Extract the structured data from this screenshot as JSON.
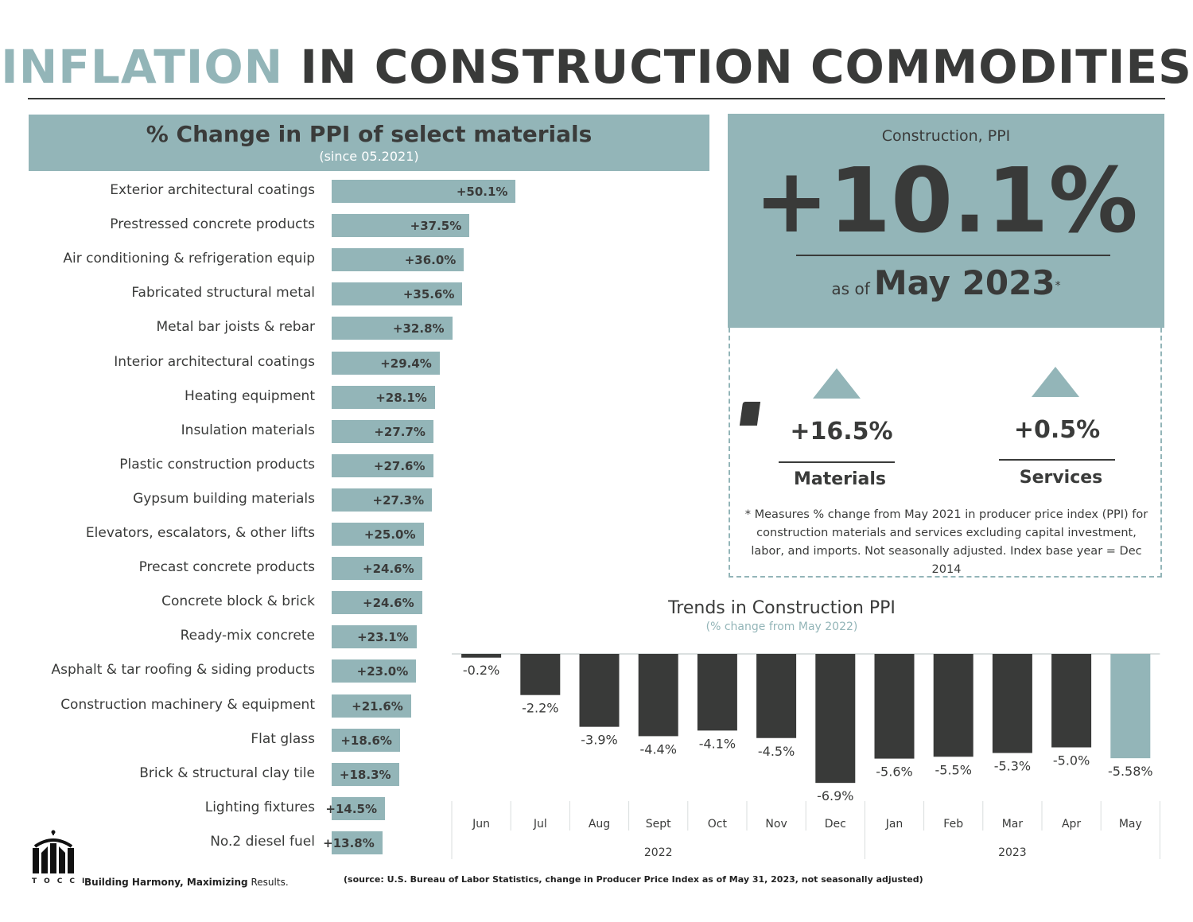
{
  "title": {
    "part1": "INFLATION",
    "part2": "IN CONSTRUCTION COMMODITIES"
  },
  "left_panel": {
    "heading": "% Change in PPI of select materials",
    "subheading": "(since 05.2021)"
  },
  "ppi_box": {
    "caption": "Construction, PPI",
    "value": "+10.1%",
    "as_of_prefix": "as of",
    "as_of_date": "May 2023",
    "asterisk": "*"
  },
  "stats": {
    "materials": {
      "value": "+16.5%",
      "label": "Materials"
    },
    "services": {
      "value": "+0.5%",
      "label": "Services"
    }
  },
  "note": "* Measures % change from May 2021 in producer price index (PPI) for construction materials and services excluding capital investment, labor, and imports. Not seasonally adjusted. Index base year = Dec 2014",
  "colors": {
    "accent": "#93b5b8",
    "dark": "#393a39"
  },
  "icons": {
    "up1": "triangle-up-icon",
    "up2": "triangle-up-icon"
  },
  "footer": {
    "brand": "TOCCI",
    "tagline_bold": "Building Harmony, Maximizing",
    "tagline_rest": "Results.",
    "source": "(source: U.S. Bureau of Labor Statistics, change in Producer Price Index as of May 31, 2023, not seasonally adjusted)"
  },
  "chart_data": [
    {
      "type": "bar",
      "orientation": "horizontal",
      "title": "% Change in PPI of select materials",
      "subtitle": "(since 05.2021)",
      "categories": [
        "Exterior architectural coatings",
        "Prestressed concrete products",
        "Air conditioning & refrigeration equip",
        "Fabricated structural metal",
        "Metal bar joists & rebar",
        "Interior architectural coatings",
        "Heating equipment",
        "Insulation materials",
        "Plastic construction products",
        "Gypsum building materials",
        "Elevators, escalators, & other lifts",
        "Precast concrete products",
        "Concrete block & brick",
        "Ready-mix concrete",
        "Asphalt & tar roofing & siding products",
        "Construction machinery & equipment",
        "Flat glass",
        "Brick & structural clay tile",
        "Lighting fixtures",
        "No.2 diesel fuel"
      ],
      "values": [
        50.1,
        37.5,
        36.0,
        35.6,
        32.8,
        29.4,
        28.1,
        27.7,
        27.6,
        27.3,
        25.0,
        24.6,
        24.6,
        23.1,
        23.0,
        21.6,
        18.6,
        18.3,
        14.5,
        13.8
      ],
      "labels": [
        "+50.1%",
        "+37.5%",
        "+36.0%",
        "+35.6%",
        "+32.8%",
        "+29.4%",
        "+28.1%",
        "+27.7%",
        "+27.6%",
        "+27.3%",
        "+25.0%",
        "+24.6%",
        "+24.6%",
        "+23.1%",
        "+23.0%",
        "+21.6%",
        "+18.6%",
        "+18.3%",
        "+14.5%",
        "+13.8%"
      ]
    },
    {
      "type": "bar",
      "title": "Trends in Construction PPI",
      "subtitle": "(% change from May 2022)",
      "categories": [
        "Jun",
        "Jul",
        "Aug",
        "Sept",
        "Oct",
        "Nov",
        "Dec",
        "Jan",
        "Feb",
        "Mar",
        "Apr",
        "May"
      ],
      "values": [
        -0.2,
        -2.2,
        -3.9,
        -4.4,
        -4.1,
        -4.5,
        -6.9,
        -5.6,
        -5.5,
        -5.3,
        -5.0,
        -5.58
      ],
      "labels": [
        "-0.2%",
        "-2.2%",
        "-3.9%",
        "-4.4%",
        "-4.1%",
        "-4.5%",
        "-6.9%",
        "-5.6%",
        "-5.5%",
        "-5.3%",
        "-5.0%",
        "-5.58%"
      ],
      "highlight_index": 11,
      "year_groups": [
        {
          "label": "2022",
          "start": 0,
          "end": 6
        },
        {
          "label": "2023",
          "start": 7,
          "end": 11
        }
      ],
      "ylim": [
        -7,
        0
      ]
    }
  ]
}
